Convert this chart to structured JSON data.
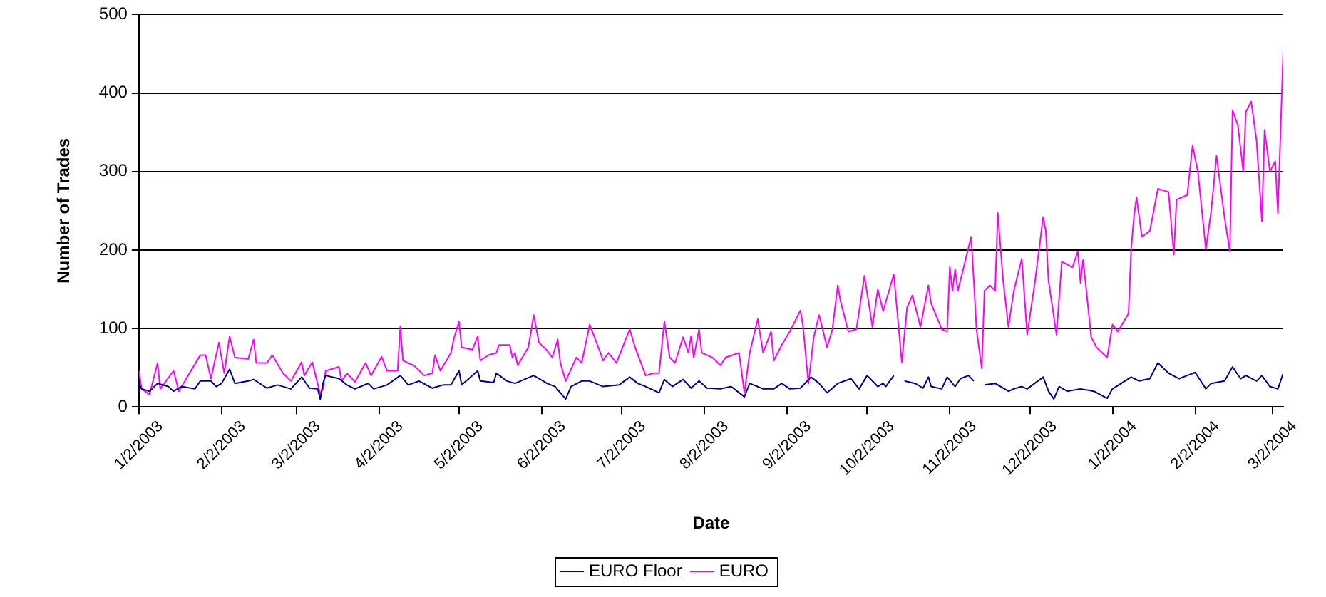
{
  "chart_data": {
    "type": "line",
    "xlabel": "Date",
    "ylabel": "Number of Trades",
    "xlim": [
      "2003-01-02",
      "2004-03-06"
    ],
    "xticks": [
      {
        "value": "2003-01-02",
        "label": "1/2/2003"
      },
      {
        "value": "2003-02-02",
        "label": "2/2/2003"
      },
      {
        "value": "2003-03-02",
        "label": "3/2/2003"
      },
      {
        "value": "2003-04-02",
        "label": "4/2/2003"
      },
      {
        "value": "2003-05-02",
        "label": "5/2/2003"
      },
      {
        "value": "2003-06-02",
        "label": "6/2/2003"
      },
      {
        "value": "2003-07-02",
        "label": "7/2/2003"
      },
      {
        "value": "2003-08-02",
        "label": "8/2/2003"
      },
      {
        "value": "2003-09-02",
        "label": "9/2/2003"
      },
      {
        "value": "2003-10-02",
        "label": "10/2/2003"
      },
      {
        "value": "2003-11-02",
        "label": "11/2/2003"
      },
      {
        "value": "2003-12-02",
        "label": "12/2/2003"
      },
      {
        "value": "2004-01-02",
        "label": "1/2/2004"
      },
      {
        "value": "2004-02-02",
        "label": "2/2/2004"
      },
      {
        "value": "2004-03-02",
        "label": "3/2/2004"
      }
    ],
    "ylim": [
      0,
      500
    ],
    "yticks": [
      0,
      100,
      200,
      300,
      400,
      500
    ],
    "grid": "y",
    "legend": "bottom",
    "line_style": "solid",
    "series": [
      {
        "name": "EURO Floor",
        "color": "#000080",
        "x": [
          "2003-01-02",
          "2003-01-03",
          "2003-01-06",
          "2003-01-09",
          "2003-01-13",
          "2003-01-15",
          "2003-01-18",
          "2003-01-23",
          "2003-01-25",
          "2003-01-29",
          "2003-01-31",
          "2003-02-02",
          "2003-02-05",
          "2003-02-07",
          "2003-02-12",
          "2003-02-14",
          "2003-02-19",
          "2003-02-23",
          "2003-02-28",
          "2003-03-04",
          "2003-03-07",
          "2003-03-10",
          "2003-03-11",
          "2003-03-12",
          "2003-03-13",
          "2003-03-18",
          "2003-03-21",
          "2003-03-24",
          "2003-03-29",
          "2003-03-31",
          "2003-04-05",
          "2003-04-10",
          "2003-04-13",
          "2003-04-17",
          "2003-04-22",
          "2003-04-26",
          "2003-04-29",
          "2003-05-02",
          "2003-05-03",
          "2003-05-09",
          "2003-05-10",
          "2003-05-15",
          "2003-05-16",
          "2003-05-20",
          "2003-05-23",
          "2003-05-30",
          "2003-06-04",
          "2003-06-07",
          "2003-06-11",
          "2003-06-13",
          "2003-06-17",
          "2003-06-20",
          "2003-06-25",
          "2003-07-01",
          "2003-07-05",
          "2003-07-08",
          "2003-07-11",
          "2003-07-16",
          "2003-07-18",
          "2003-07-21",
          "2003-07-25",
          "2003-07-28",
          "2003-07-31",
          "2003-08-03",
          "2003-08-08",
          "2003-08-12",
          "2003-08-17",
          "2003-08-19",
          "2003-08-24",
          "2003-08-28",
          "2003-08-31",
          "2003-09-03",
          "2003-09-07",
          "2003-09-11",
          "2003-09-14",
          "2003-09-17",
          "2003-09-21",
          "2003-09-26",
          "2003-09-29",
          "2003-10-02",
          "2003-10-06",
          "2003-10-08",
          "2003-10-09",
          "2003-10-12",
          "2003-10-14",
          "2003-10-16",
          "2003-10-20",
          "2003-10-23",
          "2003-10-25",
          "2003-10-26",
          "2003-10-30",
          "2003-11-01",
          "2003-11-04",
          "2003-11-06",
          "2003-11-09",
          "2003-11-11",
          "2003-11-13",
          "2003-11-15",
          "2003-11-19",
          "2003-11-24",
          "2003-11-26",
          "2003-11-29",
          "2003-12-01",
          "2003-12-03",
          "2003-12-07",
          "2003-12-09",
          "2003-12-11",
          "2003-12-13",
          "2003-12-16",
          "2003-12-21",
          "2003-12-26",
          "2003-12-31",
          "2004-01-02",
          "2004-01-09",
          "2004-01-12",
          "2004-01-16",
          "2004-01-19",
          "2004-01-23",
          "2004-01-27",
          "2004-01-30",
          "2004-02-02",
          "2004-02-06",
          "2004-02-08",
          "2004-02-13",
          "2004-02-16",
          "2004-02-19",
          "2004-02-21",
          "2004-02-25",
          "2004-02-27",
          "2004-03-01",
          "2004-03-04",
          "2004-03-06"
        ],
        "values": [
          30,
          23,
          20,
          30,
          26,
          20,
          26,
          23,
          33,
          33,
          26,
          30,
          48,
          30,
          33,
          35,
          24,
          28,
          23,
          38,
          24,
          23,
          10,
          30,
          40,
          36,
          28,
          23,
          30,
          23,
          28,
          40,
          28,
          33,
          24,
          28,
          28,
          46,
          28,
          46,
          33,
          31,
          43,
          33,
          30,
          40,
          30,
          26,
          10,
          26,
          33,
          33,
          26,
          28,
          38,
          30,
          26,
          18,
          35,
          26,
          35,
          24,
          33,
          24,
          23,
          26,
          13,
          30,
          23,
          23,
          30,
          23,
          24,
          38,
          30,
          18,
          30,
          36,
          23,
          40,
          26,
          30,
          26,
          40,
          null,
          33,
          30,
          24,
          38,
          26,
          23,
          38,
          26,
          36,
          40,
          33,
          null,
          28,
          30,
          20,
          23,
          26,
          23,
          28,
          38,
          20,
          10,
          26,
          20,
          23,
          20,
          11,
          23,
          38,
          33,
          36,
          56,
          43,
          36,
          40,
          44,
          23,
          30,
          33,
          51,
          36,
          40,
          33,
          40,
          26,
          23,
          43
        ]
      },
      {
        "name": "EURO",
        "color": "#ff00ff",
        "x": [
          "2003-01-02",
          "2003-01-03",
          "2003-01-06",
          "2003-01-09",
          "2003-01-10",
          "2003-01-15",
          "2003-01-17",
          "2003-01-21",
          "2003-01-25",
          "2003-01-27",
          "2003-01-29",
          "2003-02-01",
          "2003-02-03",
          "2003-02-05",
          "2003-02-07",
          "2003-02-12",
          "2003-02-14",
          "2003-02-15",
          "2003-02-19",
          "2003-02-21",
          "2003-02-25",
          "2003-02-28",
          "2003-03-04",
          "2003-03-05",
          "2003-03-08",
          "2003-03-11",
          "2003-03-12",
          "2003-03-13",
          "2003-03-18",
          "2003-03-19",
          "2003-03-21",
          "2003-03-24",
          "2003-03-28",
          "2003-03-30",
          "2003-04-03",
          "2003-04-05",
          "2003-04-09",
          "2003-04-10",
          "2003-04-11",
          "2003-04-15",
          "2003-04-19",
          "2003-04-22",
          "2003-04-23",
          "2003-04-25",
          "2003-04-29",
          "2003-04-30",
          "2003-05-02",
          "2003-05-03",
          "2003-05-07",
          "2003-05-09",
          "2003-05-10",
          "2003-05-13",
          "2003-05-16",
          "2003-05-17",
          "2003-05-21",
          "2003-05-22",
          "2003-05-23",
          "2003-05-24",
          "2003-05-28",
          "2003-05-30",
          "2003-06-01",
          "2003-06-04",
          "2003-06-06",
          "2003-06-08",
          "2003-06-09",
          "2003-06-11",
          "2003-06-15",
          "2003-06-17",
          "2003-06-20",
          "2003-06-24",
          "2003-06-25",
          "2003-06-27",
          "2003-06-30",
          "2003-07-05",
          "2003-07-07",
          "2003-07-11",
          "2003-07-14",
          "2003-07-16",
          "2003-07-18",
          "2003-07-20",
          "2003-07-22",
          "2003-07-25",
          "2003-07-27",
          "2003-07-28",
          "2003-07-29",
          "2003-07-31",
          "2003-08-01",
          "2003-08-05",
          "2003-08-08",
          "2003-08-10",
          "2003-08-15",
          "2003-08-17",
          "2003-08-19",
          "2003-08-22",
          "2003-08-24",
          "2003-08-27",
          "2003-08-28",
          "2003-08-31",
          "2003-09-03",
          "2003-09-07",
          "2003-09-08",
          "2003-09-10",
          "2003-09-12",
          "2003-09-14",
          "2003-09-17",
          "2003-09-19",
          "2003-09-21",
          "2003-09-22",
          "2003-09-25",
          "2003-09-28",
          "2003-10-01",
          "2003-10-04",
          "2003-10-06",
          "2003-10-08",
          "2003-10-12",
          "2003-10-15",
          "2003-10-17",
          "2003-10-19",
          "2003-10-22",
          "2003-10-25",
          "2003-10-26",
          "2003-10-30",
          "2003-11-01",
          "2003-11-02",
          "2003-11-03",
          "2003-11-04",
          "2003-11-05",
          "2003-11-07",
          "2003-11-10",
          "2003-11-11",
          "2003-11-12",
          "2003-11-14",
          "2003-11-15",
          "2003-11-17",
          "2003-11-19",
          "2003-11-20",
          "2003-11-22",
          "2003-11-24",
          "2003-11-26",
          "2003-11-29",
          "2003-12-01",
          "2003-12-04",
          "2003-12-05",
          "2003-12-07",
          "2003-12-08",
          "2003-12-09",
          "2003-12-12",
          "2003-12-14",
          "2003-12-18",
          "2003-12-20",
          "2003-12-21",
          "2003-12-22",
          "2003-12-25",
          "2003-12-27",
          "2003-12-31",
          "2004-01-02",
          "2004-01-04",
          "2004-01-08",
          "2004-01-09",
          "2004-01-10",
          "2004-01-11",
          "2004-01-13",
          "2004-01-16",
          "2004-01-19",
          "2004-01-23",
          "2004-01-25",
          "2004-01-26",
          "2004-01-30",
          "2004-02-01",
          "2004-02-03",
          "2004-02-06",
          "2004-02-08",
          "2004-02-10",
          "2004-02-13",
          "2004-02-15",
          "2004-02-16",
          "2004-02-18",
          "2004-02-20",
          "2004-02-21",
          "2004-02-23",
          "2004-02-25",
          "2004-02-27",
          "2004-02-28",
          "2004-03-01",
          "2004-03-03",
          "2004-03-04",
          "2004-03-06"
        ],
        "values": [
          46,
          23,
          16,
          56,
          23,
          46,
          20,
          43,
          66,
          66,
          36,
          82,
          43,
          90,
          63,
          61,
          86,
          56,
          56,
          66,
          43,
          33,
          57,
          40,
          57,
          16,
          23,
          46,
          51,
          33,
          43,
          32,
          56,
          40,
          64,
          46,
          46,
          103,
          59,
          53,
          40,
          43,
          66,
          46,
          69,
          86,
          109,
          76,
          73,
          90,
          59,
          66,
          69,
          79,
          79,
          63,
          69,
          53,
          76,
          117,
          82,
          72,
          63,
          86,
          56,
          33,
          63,
          56,
          105,
          69,
          59,
          69,
          56,
          99,
          76,
          40,
          43,
          43,
          109,
          63,
          56,
          89,
          69,
          90,
          63,
          99,
          69,
          63,
          53,
          63,
          69,
          18,
          69,
          112,
          69,
          96,
          59,
          79,
          96,
          123,
          102,
          30,
          89,
          117,
          76,
          99,
          155,
          135,
          96,
          99,
          167,
          102,
          150,
          122,
          169,
          57,
          127,
          142,
          102,
          155,
          132,
          99,
          96,
          178,
          148,
          175,
          148,
          175,
          217,
          161,
          99,
          49,
          148,
          155,
          148,
          247,
          161,
          102,
          148,
          189,
          92,
          161,
          188,
          242,
          224,
          161,
          92,
          185,
          178,
          198,
          158,
          188,
          89,
          76,
          63,
          105,
          96,
          119,
          201,
          241,
          267,
          217,
          224,
          278,
          274,
          194,
          264,
          270,
          333,
          300,
          201,
          250,
          320,
          241,
          198,
          378,
          359,
          300,
          376,
          389,
          339,
          237,
          353,
          300,
          313,
          247,
          455
        ]
      }
    ]
  }
}
